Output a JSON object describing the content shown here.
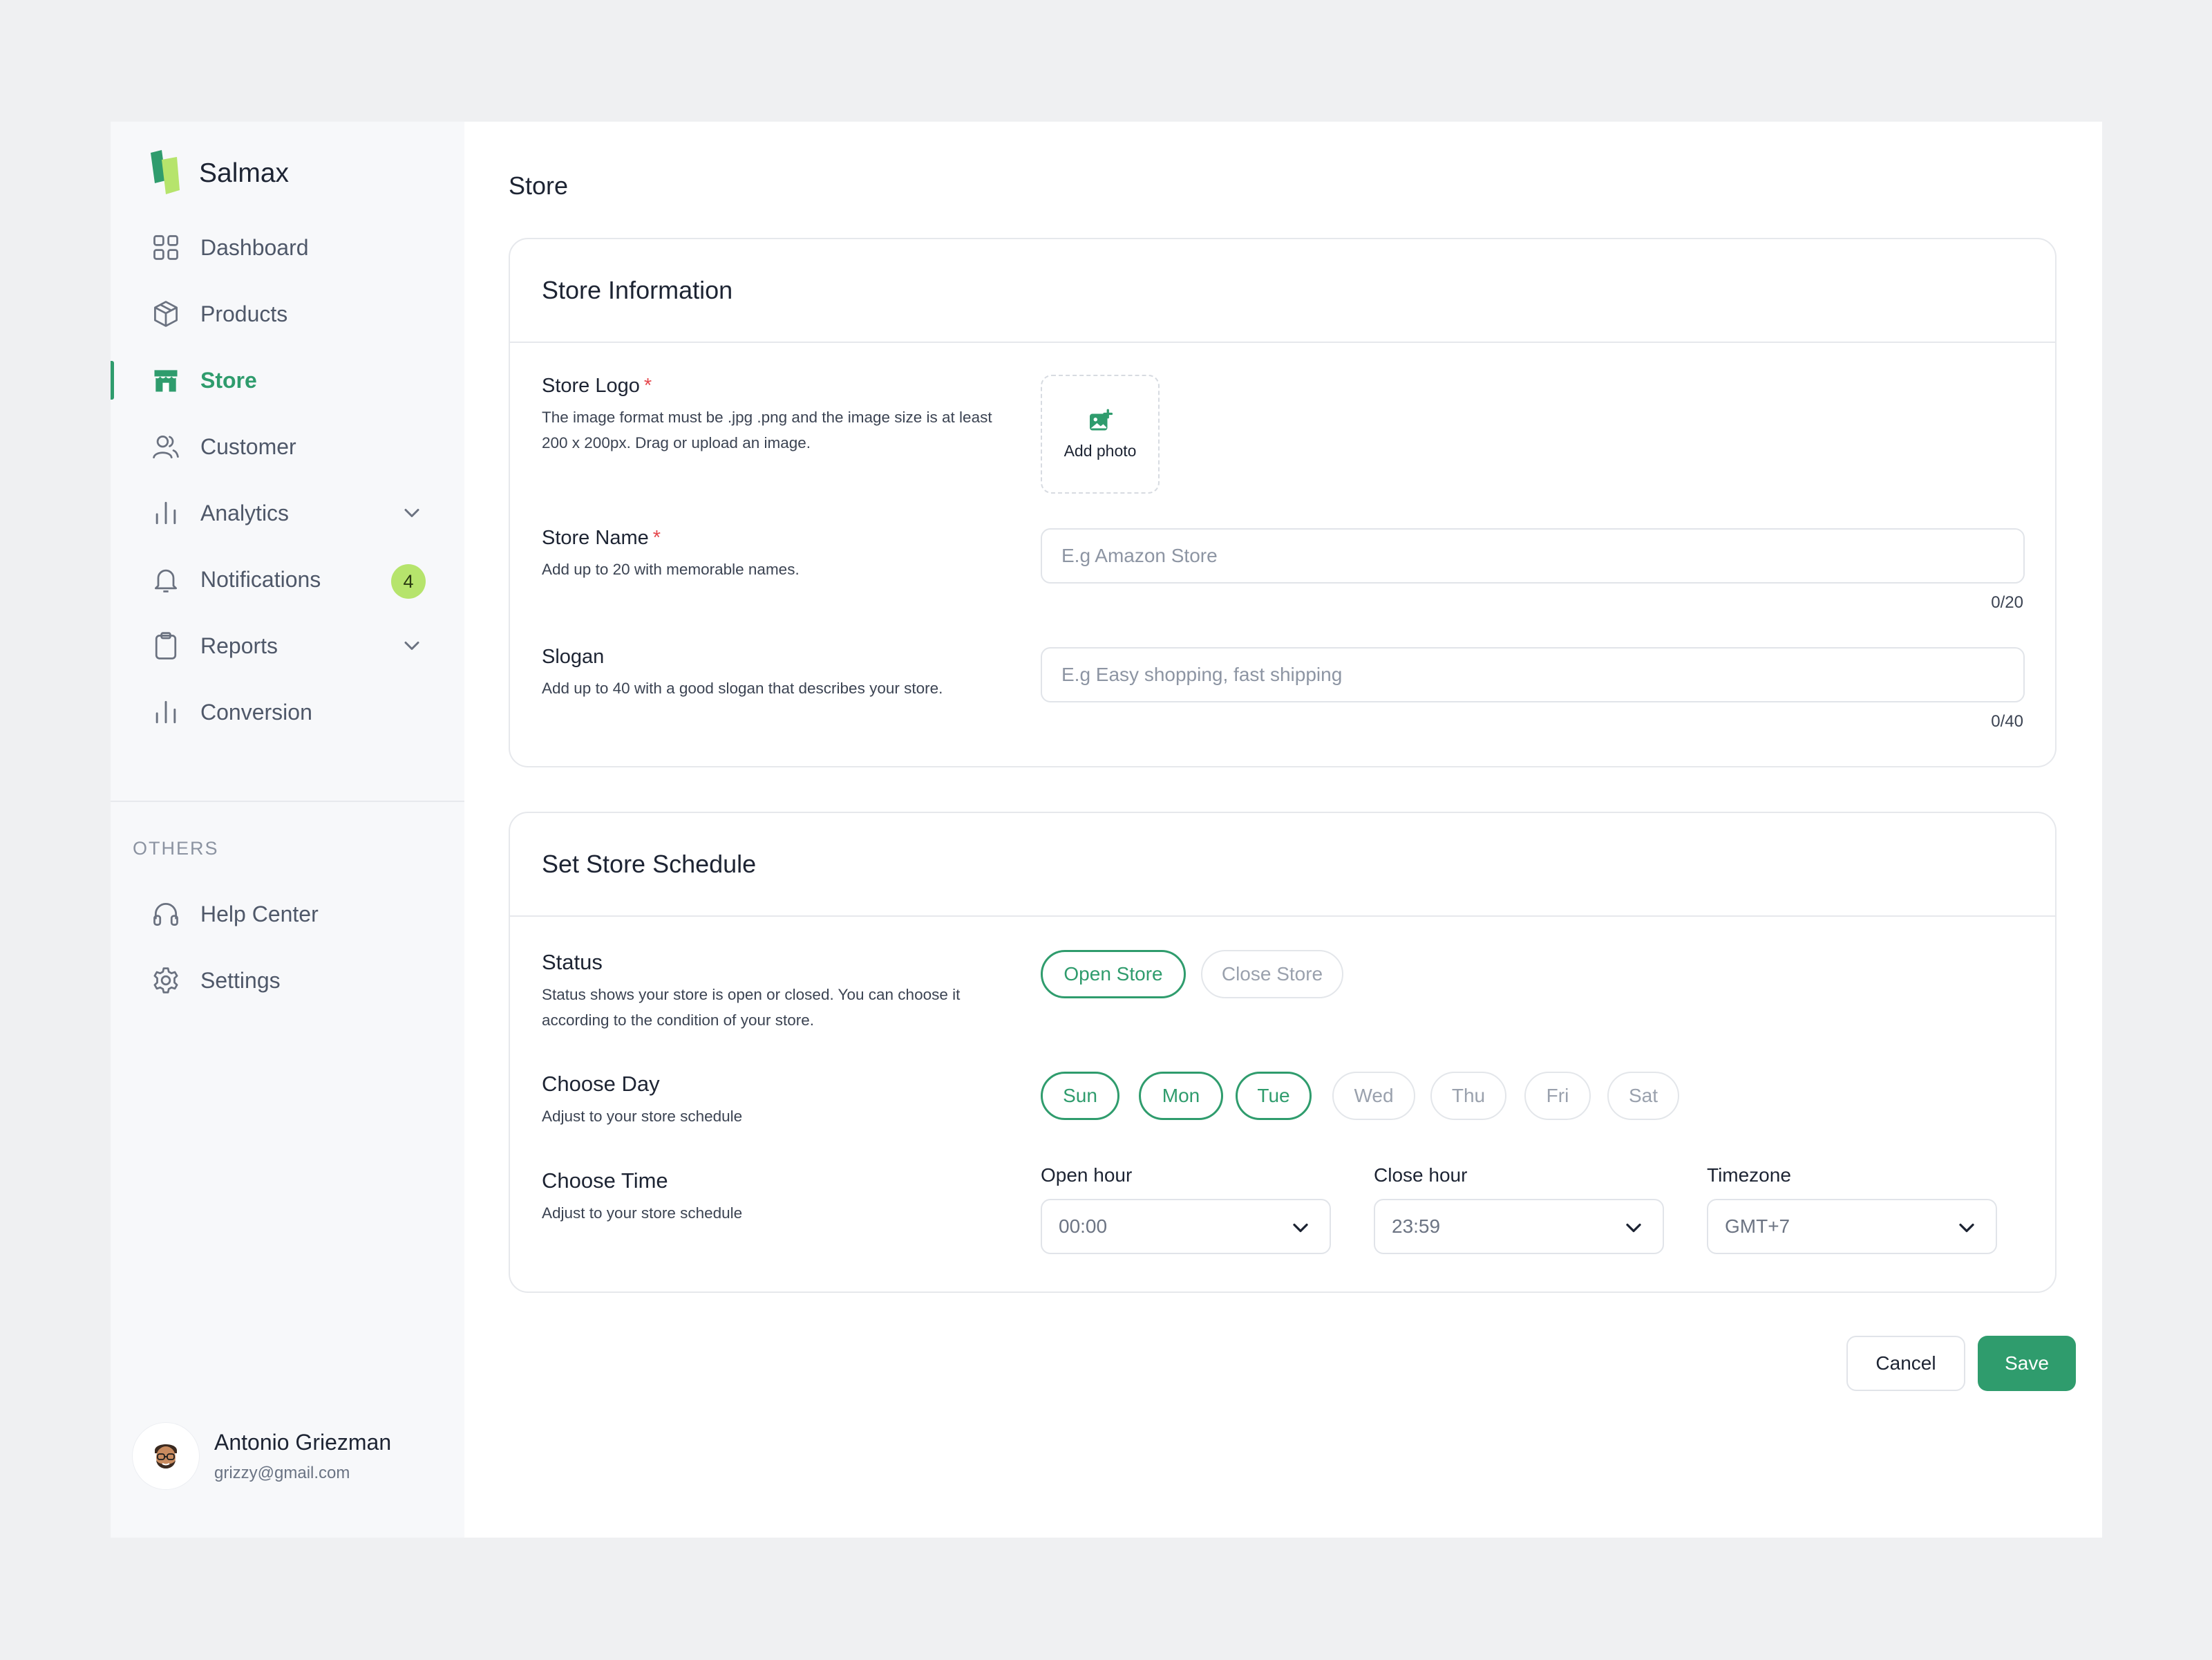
{
  "brand": {
    "name": "Salmax"
  },
  "sidebar": {
    "items": [
      {
        "label": "Dashboard",
        "icon": "grid-icon"
      },
      {
        "label": "Products",
        "icon": "box-icon"
      },
      {
        "label": "Store",
        "icon": "store-icon",
        "active": true
      },
      {
        "label": "Customer",
        "icon": "users-icon"
      },
      {
        "label": "Analytics",
        "icon": "bar-chart-icon",
        "expandable": true
      },
      {
        "label": "Notifications",
        "icon": "bell-icon",
        "badge": "4"
      },
      {
        "label": "Reports",
        "icon": "clipboard-icon",
        "expandable": true
      },
      {
        "label": "Conversion",
        "icon": "bar-chart-icon"
      }
    ],
    "section_label": "OTHERS",
    "others": [
      {
        "label": "Help Center",
        "icon": "headphones-icon"
      },
      {
        "label": "Settings",
        "icon": "gear-icon"
      }
    ]
  },
  "profile": {
    "name": "Antonio Griezman",
    "email": "grizzy@gmail.com"
  },
  "page": {
    "title": "Store"
  },
  "store_info": {
    "title": "Store Information",
    "logo": {
      "label": "Store Logo",
      "required_mark": "*",
      "desc": "The image format must be .jpg .png and the image size is at least 200 x 200px. Drag or upload an image.",
      "upload_label": "Add photo"
    },
    "name": {
      "label": "Store Name",
      "required_mark": "*",
      "desc": "Add up to 20 with memorable names.",
      "placeholder": "E.g Amazon Store",
      "value": "",
      "counter": "0/20"
    },
    "slogan": {
      "label": "Slogan",
      "desc": "Add up to 40 with a good slogan that describes your store.",
      "placeholder": "E.g Easy shopping, fast shipping",
      "value": "",
      "counter": "0/40"
    }
  },
  "schedule": {
    "title": "Set Store Schedule",
    "status": {
      "label": "Status",
      "desc": "Status shows your store is open or closed. You can choose it according to the condition of your store.",
      "options": [
        {
          "label": "Open Store",
          "selected": true
        },
        {
          "label": "Close Store",
          "selected": false
        }
      ]
    },
    "day": {
      "label": "Choose Day",
      "desc": "Adjust to your store schedule",
      "days": [
        {
          "label": "Sun",
          "selected": true
        },
        {
          "label": "Mon",
          "selected": true
        },
        {
          "label": "Tue",
          "selected": true
        },
        {
          "label": "Wed",
          "selected": false
        },
        {
          "label": "Thu",
          "selected": false
        },
        {
          "label": "Fri",
          "selected": false
        },
        {
          "label": "Sat",
          "selected": false
        }
      ]
    },
    "time": {
      "label": "Choose Time",
      "desc": "Adjust to your store schedule",
      "open_label": "Open hour",
      "open_value": "00:00",
      "close_label": "Close hour",
      "close_value": "23:59",
      "tz_label": "Timezone",
      "tz_value": "GMT+7"
    }
  },
  "actions": {
    "cancel": "Cancel",
    "save": "Save"
  },
  "colors": {
    "accent": "#2f9c6d",
    "badge": "#b6e46c",
    "logo_dark": "#2f9c6d",
    "logo_light": "#b6e46c",
    "required": "#e5484d"
  }
}
